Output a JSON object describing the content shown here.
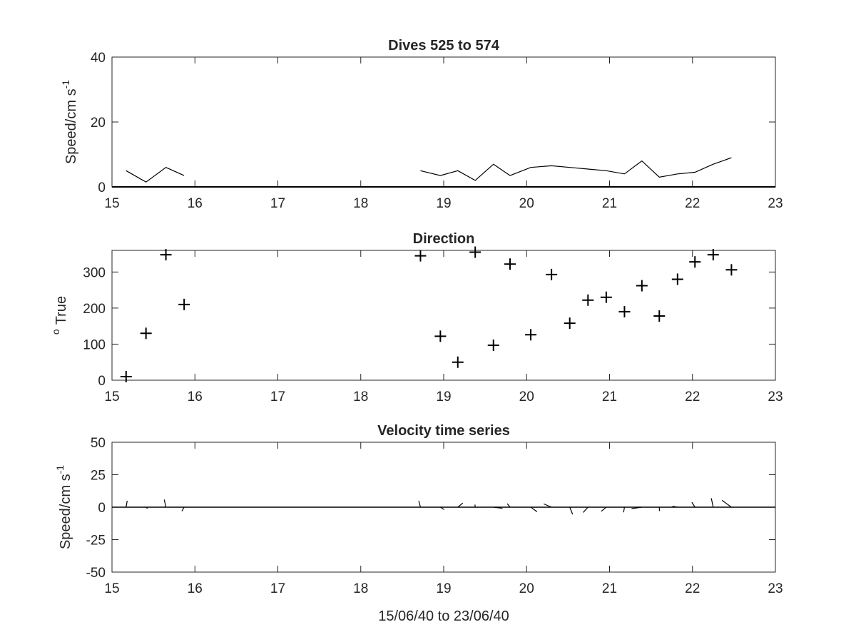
{
  "chart_data": [
    {
      "type": "line",
      "title": "Dives 525 to 574",
      "xlabel": "",
      "ylabel": "Speed/cm s",
      "ylabel_superscript": "-1",
      "xlim": [
        15,
        23
      ],
      "ylim": [
        0,
        40
      ],
      "xticks": [
        "15",
        "16",
        "17",
        "18",
        "19",
        "20",
        "21",
        "22",
        "23"
      ],
      "yticks": [
        "0",
        "20",
        "40"
      ],
      "grid": false,
      "series": [
        {
          "segments": [
            [
              [
                15.17,
                5
              ],
              [
                15.41,
                1.5
              ],
              [
                15.65,
                6
              ],
              [
                15.87,
                3.5
              ]
            ],
            [
              [
                18.72,
                5
              ],
              [
                18.96,
                3.5
              ],
              [
                19.17,
                5
              ],
              [
                19.38,
                2
              ],
              [
                19.6,
                7
              ],
              [
                19.8,
                3.5
              ],
              [
                20.05,
                6
              ],
              [
                20.3,
                6.5
              ],
              [
                20.52,
                6
              ],
              [
                20.74,
                5.5
              ],
              [
                20.96,
                5
              ],
              [
                21.18,
                4
              ],
              [
                21.39,
                8
              ],
              [
                21.6,
                3
              ],
              [
                21.82,
                4
              ],
              [
                22.03,
                4.5
              ],
              [
                22.25,
                7
              ],
              [
                22.47,
                9
              ]
            ]
          ]
        }
      ]
    },
    {
      "type": "scatter",
      "title": "Direction",
      "xlabel": "",
      "ylabel": "True",
      "ylabel_superscript": "o",
      "xlim": [
        15,
        23
      ],
      "ylim": [
        0,
        360
      ],
      "xticks": [
        "15",
        "16",
        "17",
        "18",
        "19",
        "20",
        "21",
        "22",
        "23"
      ],
      "yticks": [
        "0",
        "100",
        "200",
        "300"
      ],
      "marker": "+",
      "grid": false,
      "series": [
        {
          "x": [
            15.17,
            15.41,
            15.65,
            15.87,
            18.72,
            18.96,
            19.17,
            19.38,
            19.6,
            19.8,
            20.05,
            20.3,
            20.52,
            20.74,
            20.96,
            21.18,
            21.39,
            21.6,
            21.82,
            22.03,
            22.25,
            22.47
          ],
          "y": [
            10,
            130,
            348,
            210,
            345,
            122,
            50,
            355,
            97,
            322,
            126,
            293,
            158,
            222,
            230,
            190,
            262,
            178,
            280,
            328,
            348,
            306
          ]
        }
      ]
    },
    {
      "type": "line",
      "title": "Velocity time series",
      "xlabel": "15/06/40 to 23/06/40",
      "ylabel": "Speed/cm s",
      "ylabel_superscript": "-1",
      "xlim": [
        15,
        23
      ],
      "ylim": [
        -50,
        50
      ],
      "xticks": [
        "15",
        "16",
        "17",
        "18",
        "19",
        "20",
        "21",
        "22",
        "23"
      ],
      "yticks": [
        "-50",
        "-25",
        "0",
        "25",
        "50"
      ],
      "grid": false,
      "baseline": 0,
      "series": [
        {
          "x": [
            15.17,
            15.41,
            15.65,
            15.87,
            18.72,
            18.96,
            19.17,
            19.38,
            19.6,
            19.8,
            20.05,
            20.3,
            20.52,
            20.74,
            20.96,
            21.18,
            21.39,
            21.6,
            21.82,
            22.03,
            22.25,
            22.47
          ],
          "speed": [
            5,
            1.5,
            6,
            3.5,
            5,
            3.5,
            5,
            2,
            7,
            3.5,
            6,
            6.5,
            6,
            5.5,
            5,
            4,
            8,
            3,
            4,
            4.5,
            7,
            9
          ],
          "direction": [
            10,
            130,
            348,
            210,
            345,
            122,
            50,
            355,
            97,
            322,
            126,
            293,
            158,
            222,
            230,
            190,
            262,
            178,
            280,
            328,
            348,
            306
          ]
        }
      ]
    }
  ]
}
